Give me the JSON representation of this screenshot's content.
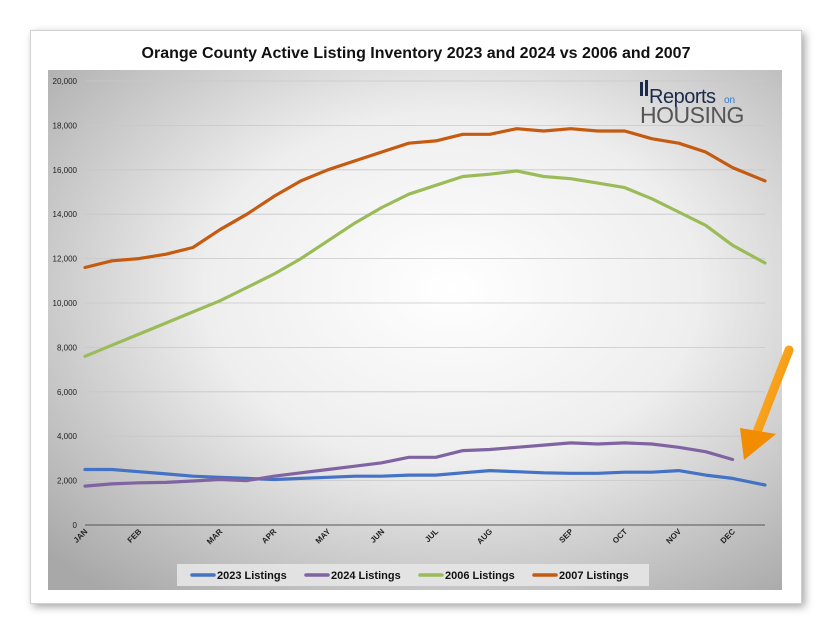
{
  "chart_data": {
    "type": "line",
    "title": "Orange County Active Listing Inventory 2023 and 2024 vs 2006 and 2007",
    "xlabel": "",
    "ylabel": "",
    "ylim": [
      0,
      20000
    ],
    "y_ticks": [
      "0",
      "2,000",
      "4,000",
      "6,000",
      "8,000",
      "10,000",
      "12,000",
      "14,000",
      "16,000",
      "18,000",
      "20,000"
    ],
    "x_ticks": [
      "JAN",
      "FEB",
      "MAR",
      "APR",
      "MAY",
      "JUN",
      "JUL",
      "AUG",
      "SEP",
      "OCT",
      "NOV",
      "DEC"
    ],
    "x_tick_positions": [
      0,
      1,
      2.5,
      3.5,
      4.5,
      5.5,
      6.5,
      7.5,
      9,
      10,
      11,
      12
    ],
    "x_range": [
      0,
      12.6
    ],
    "grid": true,
    "legend_position": "bottom",
    "series": [
      {
        "name": "2023 Listings",
        "color": "#4472c4",
        "x": [
          0,
          0.5,
          1,
          1.5,
          2,
          2.5,
          3,
          3.5,
          4,
          4.5,
          5,
          5.5,
          6,
          6.5,
          7,
          7.5,
          8,
          8.5,
          9,
          9.5,
          10,
          10.5,
          11,
          11.5,
          12,
          12.6
        ],
        "values": [
          2500,
          2500,
          2400,
          2300,
          2200,
          2150,
          2100,
          2050,
          2100,
          2150,
          2200,
          2200,
          2250,
          2250,
          2350,
          2450,
          2400,
          2350,
          2330,
          2330,
          2380,
          2380,
          2450,
          2250,
          2100,
          1800
        ]
      },
      {
        "name": "2024 Listings",
        "color": "#8064a2",
        "x": [
          0,
          0.5,
          1,
          1.5,
          2,
          2.5,
          3,
          3.5,
          4,
          4.5,
          5,
          5.5,
          6,
          6.5,
          7,
          7.5,
          8,
          8.5,
          9,
          9.5,
          10,
          10.5,
          11,
          11.5,
          12
        ],
        "values": [
          1750,
          1850,
          1900,
          1920,
          1980,
          2050,
          2000,
          2200,
          2350,
          2500,
          2650,
          2800,
          3050,
          3050,
          3350,
          3400,
          3500,
          3600,
          3700,
          3650,
          3700,
          3650,
          3500,
          3300,
          2950
        ]
      },
      {
        "name": "2006 Listings",
        "color": "#9bbb59",
        "x": [
          0,
          0.5,
          1,
          1.5,
          2,
          2.5,
          3,
          3.5,
          4,
          4.5,
          5,
          5.5,
          6,
          6.5,
          7,
          7.5,
          8,
          8.5,
          9,
          9.5,
          10,
          10.5,
          11,
          11.5,
          12,
          12.6
        ],
        "values": [
          7600,
          8100,
          8600,
          9100,
          9600,
          10100,
          10700,
          11300,
          12000,
          12800,
          13600,
          14300,
          14900,
          15300,
          15700,
          15800,
          15950,
          15700,
          15600,
          15400,
          15200,
          14700,
          14100,
          13500,
          12600,
          11800
        ]
      },
      {
        "name": "2007 Listings",
        "color": "#c55a11",
        "x": [
          0,
          0.5,
          1,
          1.5,
          2,
          2.5,
          3,
          3.5,
          4,
          4.5,
          5,
          5.5,
          6,
          6.5,
          7,
          7.5,
          8,
          8.5,
          9,
          9.5,
          10,
          10.5,
          11,
          11.5,
          12,
          12.6
        ],
        "values": [
          11600,
          11900,
          12000,
          12200,
          12500,
          13300,
          14000,
          14800,
          15500,
          16000,
          16400,
          16800,
          17200,
          17300,
          17600,
          17600,
          17850,
          17750,
          17850,
          17750,
          17750,
          17400,
          17200,
          16800,
          16100,
          15500
        ]
      }
    ]
  },
  "logo": {
    "line1": "Reports",
    "line1_suffix": "on",
    "line2": "HOUSING"
  }
}
